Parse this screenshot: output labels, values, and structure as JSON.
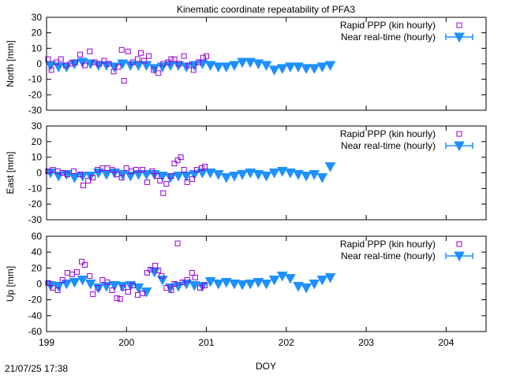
{
  "title": "Kinematic coordinate repeatability of PFA3",
  "timestamp": "21/07/25 17:38",
  "xlabel": "DOY",
  "colors": {
    "rapid": "#9400d3",
    "nrt": "#1e90ff"
  },
  "chart_data": [
    {
      "type": "scatter",
      "ylabel": "North [mm]",
      "xlim": [
        199,
        204.5
      ],
      "ylim": [
        -30,
        30
      ],
      "yticks": [
        -30,
        -20,
        -10,
        0,
        10,
        20,
        30
      ],
      "legend_position": "top-right",
      "series": [
        {
          "name": "Rapid PPP (kin hourly)",
          "marker": "square",
          "points": [
            [
              199.02,
              3
            ],
            [
              199.06,
              -4
            ],
            [
              199.12,
              1
            ],
            [
              199.18,
              3
            ],
            [
              199.24,
              -1
            ],
            [
              199.3,
              0
            ],
            [
              199.36,
              1
            ],
            [
              199.42,
              6
            ],
            [
              199.48,
              -1
            ],
            [
              199.54,
              8
            ],
            [
              199.6,
              1
            ],
            [
              199.66,
              0
            ],
            [
              199.72,
              2
            ],
            [
              199.78,
              0
            ],
            [
              199.84,
              -5
            ],
            [
              199.9,
              -2
            ],
            [
              199.94,
              9
            ],
            [
              199.97,
              -11
            ],
            [
              200.02,
              8
            ],
            [
              200.08,
              1
            ],
            [
              200.14,
              3
            ],
            [
              200.18,
              7
            ],
            [
              200.22,
              2
            ],
            [
              200.28,
              5
            ],
            [
              200.34,
              -4
            ],
            [
              200.4,
              -6
            ],
            [
              200.46,
              0
            ],
            [
              200.52,
              1
            ],
            [
              200.56,
              3
            ],
            [
              200.6,
              3
            ],
            [
              200.66,
              0
            ],
            [
              200.72,
              5
            ],
            [
              200.78,
              -1
            ],
            [
              200.84,
              -4
            ],
            [
              200.9,
              1
            ],
            [
              200.96,
              4
            ],
            [
              201.0,
              5
            ]
          ]
        },
        {
          "name": "Near real-time (hourly)",
          "marker": "triangle-down",
          "points": [
            [
              199.05,
              -1
            ],
            [
              199.15,
              -2
            ],
            [
              199.25,
              -2
            ],
            [
              199.35,
              0
            ],
            [
              199.45,
              1
            ],
            [
              199.55,
              0
            ],
            [
              199.65,
              -1
            ],
            [
              199.75,
              -1
            ],
            [
              199.85,
              -2
            ],
            [
              199.95,
              0
            ],
            [
              200.05,
              -1
            ],
            [
              200.15,
              -1
            ],
            [
              200.25,
              -1
            ],
            [
              200.35,
              -3
            ],
            [
              200.45,
              -2
            ],
            [
              200.55,
              -1
            ],
            [
              200.65,
              -1
            ],
            [
              200.75,
              -2
            ],
            [
              200.85,
              -1
            ],
            [
              200.95,
              0
            ],
            [
              201.05,
              -1
            ],
            [
              201.15,
              -2
            ],
            [
              201.25,
              -2
            ],
            [
              201.35,
              -1
            ],
            [
              201.45,
              1
            ],
            [
              201.55,
              1
            ],
            [
              201.65,
              0
            ],
            [
              201.75,
              -1
            ],
            [
              201.85,
              -4
            ],
            [
              201.95,
              -3
            ],
            [
              202.05,
              -2
            ],
            [
              202.15,
              -2
            ],
            [
              202.25,
              -3
            ],
            [
              202.35,
              -3
            ],
            [
              202.45,
              -2
            ],
            [
              202.55,
              -1
            ]
          ]
        }
      ]
    },
    {
      "type": "scatter",
      "ylabel": "East [mm]",
      "xlim": [
        199,
        204.5
      ],
      "ylim": [
        -30,
        30
      ],
      "yticks": [
        -30,
        -20,
        -10,
        0,
        10,
        20,
        30
      ],
      "legend_position": "top-right",
      "series": [
        {
          "name": "Rapid PPP (kin hourly)",
          "marker": "square",
          "points": [
            [
              199.02,
              1
            ],
            [
              199.08,
              2
            ],
            [
              199.14,
              1
            ],
            [
              199.2,
              0
            ],
            [
              199.26,
              -1
            ],
            [
              199.34,
              1
            ],
            [
              199.42,
              -1
            ],
            [
              199.46,
              -8
            ],
            [
              199.52,
              -5
            ],
            [
              199.58,
              -3
            ],
            [
              199.64,
              2
            ],
            [
              199.7,
              3
            ],
            [
              199.76,
              3
            ],
            [
              199.82,
              2
            ],
            [
              199.88,
              -1
            ],
            [
              199.94,
              -3
            ],
            [
              200.0,
              3
            ],
            [
              200.06,
              1
            ],
            [
              200.12,
              2
            ],
            [
              200.2,
              2
            ],
            [
              200.26,
              -6
            ],
            [
              200.32,
              1
            ],
            [
              200.38,
              -2
            ],
            [
              200.42,
              -5
            ],
            [
              200.46,
              -13
            ],
            [
              200.5,
              -7
            ],
            [
              200.56,
              -2
            ],
            [
              200.6,
              6
            ],
            [
              200.64,
              8
            ],
            [
              200.68,
              10
            ],
            [
              200.72,
              2
            ],
            [
              200.76,
              -6
            ],
            [
              200.82,
              -4
            ],
            [
              200.88,
              2
            ],
            [
              200.94,
              3
            ],
            [
              200.98,
              4
            ]
          ]
        },
        {
          "name": "Near real-time (hourly)",
          "marker": "triangle-down",
          "points": [
            [
              199.05,
              0
            ],
            [
              199.15,
              -2
            ],
            [
              199.25,
              -1
            ],
            [
              199.35,
              -3
            ],
            [
              199.45,
              -2
            ],
            [
              199.55,
              -2
            ],
            [
              199.65,
              0
            ],
            [
              199.75,
              -1
            ],
            [
              199.85,
              0
            ],
            [
              199.95,
              -1
            ],
            [
              200.05,
              -2
            ],
            [
              200.15,
              -1
            ],
            [
              200.25,
              -1
            ],
            [
              200.35,
              -1
            ],
            [
              200.45,
              -2
            ],
            [
              200.55,
              -3
            ],
            [
              200.65,
              -2
            ],
            [
              200.75,
              -2
            ],
            [
              200.85,
              -1
            ],
            [
              200.95,
              0
            ],
            [
              201.05,
              0
            ],
            [
              201.15,
              -1
            ],
            [
              201.25,
              -3
            ],
            [
              201.35,
              -2
            ],
            [
              201.45,
              -1
            ],
            [
              201.55,
              0
            ],
            [
              201.65,
              -1
            ],
            [
              201.75,
              -2
            ],
            [
              201.85,
              0
            ],
            [
              201.95,
              1
            ],
            [
              202.05,
              0
            ],
            [
              202.15,
              -1
            ],
            [
              202.25,
              -2
            ],
            [
              202.35,
              -1
            ],
            [
              202.45,
              -3
            ],
            [
              202.55,
              4
            ]
          ]
        }
      ]
    },
    {
      "type": "scatter",
      "ylabel": "Up [mm]",
      "xlim": [
        199,
        204.5
      ],
      "ylim": [
        -60,
        60
      ],
      "yticks": [
        -60,
        -40,
        -20,
        0,
        20,
        40,
        60
      ],
      "legend_position": "top-right",
      "series": [
        {
          "name": "Rapid PPP (kin hourly)",
          "marker": "square",
          "points": [
            [
              199.02,
              1
            ],
            [
              199.08,
              -5
            ],
            [
              199.14,
              -8
            ],
            [
              199.2,
              5
            ],
            [
              199.26,
              14
            ],
            [
              199.32,
              12
            ],
            [
              199.38,
              15
            ],
            [
              199.44,
              28
            ],
            [
              199.48,
              24
            ],
            [
              199.54,
              10
            ],
            [
              199.58,
              -13
            ],
            [
              199.64,
              -5
            ],
            [
              199.7,
              5
            ],
            [
              199.76,
              2
            ],
            [
              199.82,
              -8
            ],
            [
              199.88,
              -18
            ],
            [
              199.92,
              -19
            ],
            [
              199.96,
              -5
            ],
            [
              200.02,
              -10
            ],
            [
              200.08,
              -2
            ],
            [
              200.14,
              -14
            ],
            [
              200.2,
              -12
            ],
            [
              200.26,
              14
            ],
            [
              200.3,
              18
            ],
            [
              200.36,
              23
            ],
            [
              200.4,
              17
            ],
            [
              200.44,
              10
            ],
            [
              200.5,
              -5
            ],
            [
              200.56,
              -8
            ],
            [
              200.6,
              0
            ],
            [
              200.64,
              51
            ],
            [
              200.7,
              2
            ],
            [
              200.76,
              5
            ],
            [
              200.82,
              14
            ],
            [
              200.86,
              8
            ],
            [
              200.92,
              -5
            ],
            [
              200.98,
              -2
            ]
          ]
        },
        {
          "name": "Near real-time (hourly)",
          "marker": "triangle-down",
          "points": [
            [
              199.05,
              -2
            ],
            [
              199.15,
              -3
            ],
            [
              199.25,
              0
            ],
            [
              199.35,
              2
            ],
            [
              199.45,
              5
            ],
            [
              199.55,
              0
            ],
            [
              199.65,
              -5
            ],
            [
              199.75,
              -3
            ],
            [
              199.85,
              -2
            ],
            [
              199.95,
              -3
            ],
            [
              200.05,
              -2
            ],
            [
              200.15,
              -5
            ],
            [
              200.25,
              -10
            ],
            [
              200.35,
              15
            ],
            [
              200.45,
              5
            ],
            [
              200.55,
              -5
            ],
            [
              200.65,
              -3
            ],
            [
              200.75,
              0
            ],
            [
              200.85,
              -2
            ],
            [
              200.95,
              -3
            ],
            [
              201.05,
              3
            ],
            [
              201.15,
              0
            ],
            [
              201.25,
              2
            ],
            [
              201.35,
              0
            ],
            [
              201.45,
              -1
            ],
            [
              201.55,
              0
            ],
            [
              201.65,
              2
            ],
            [
              201.75,
              0
            ],
            [
              201.85,
              5
            ],
            [
              201.95,
              10
            ],
            [
              202.05,
              7
            ],
            [
              202.15,
              -3
            ],
            [
              202.25,
              -5
            ],
            [
              202.35,
              0
            ],
            [
              202.45,
              5
            ],
            [
              202.55,
              8
            ]
          ]
        }
      ]
    }
  ]
}
